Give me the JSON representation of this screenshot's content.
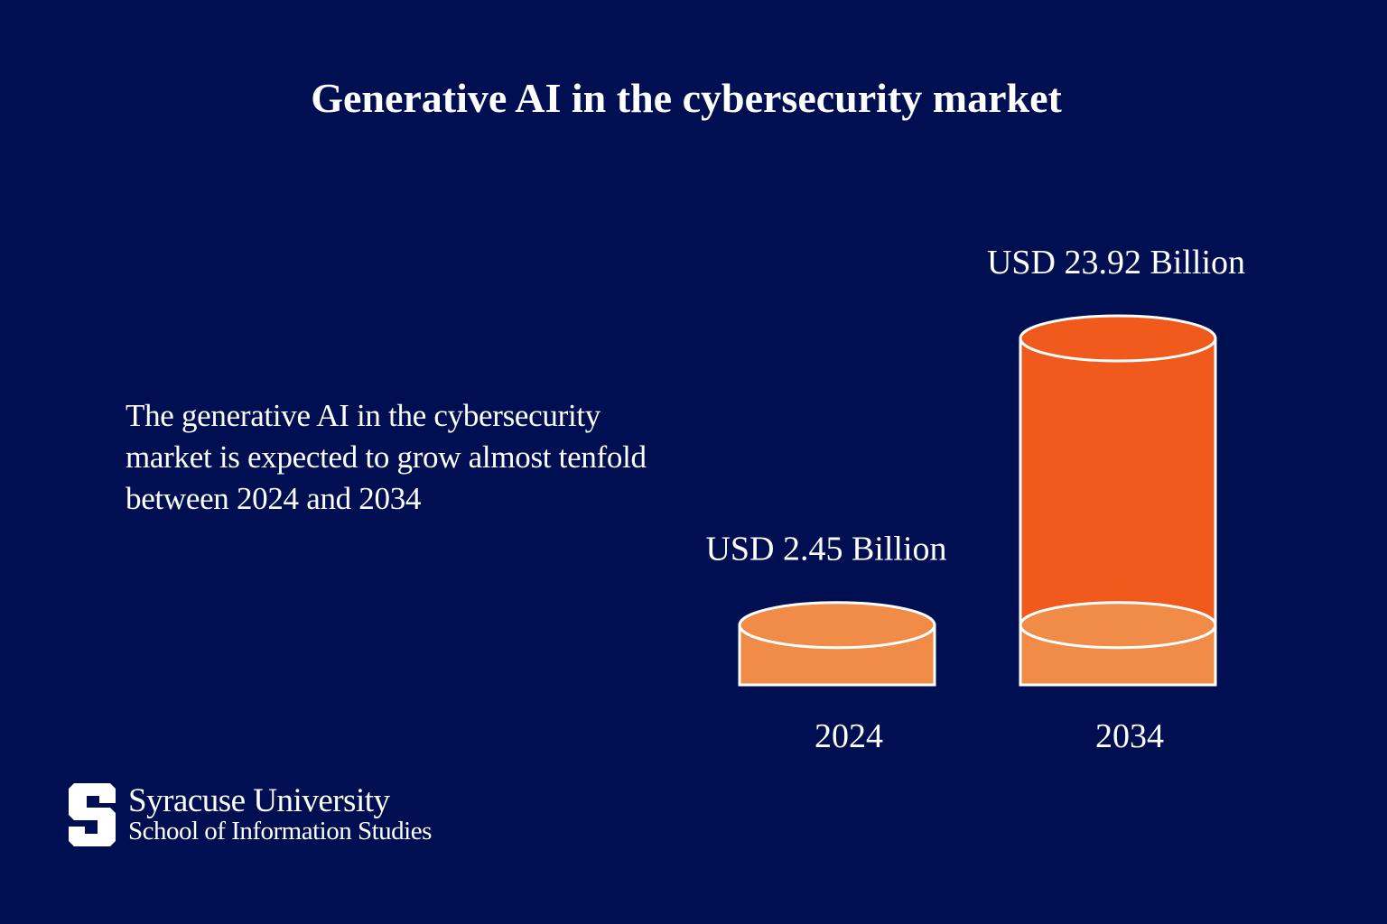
{
  "colors": {
    "background": "#000f52",
    "bar_2034": "#f05a1c",
    "bar_2024": "#f08c48",
    "outline": "#ffffff"
  },
  "description": "The generative AI in the cybersecurity market is expected to grow almost tenfold between 2024 and 2034",
  "logo": {
    "university": "Syracuse University",
    "school": "School of Information Studies",
    "mark": "S"
  },
  "chart_data": {
    "type": "bar",
    "style": "3d-cylinder",
    "title": "Generative AI in the cybersecurity market",
    "categories": [
      "2024",
      "2034"
    ],
    "values": [
      2.45,
      23.92
    ],
    "data_labels": [
      "USD 2.45 Billion",
      "USD 23.92 Billion"
    ],
    "unit": "USD Billion",
    "grid": false,
    "axes_visible": false
  }
}
